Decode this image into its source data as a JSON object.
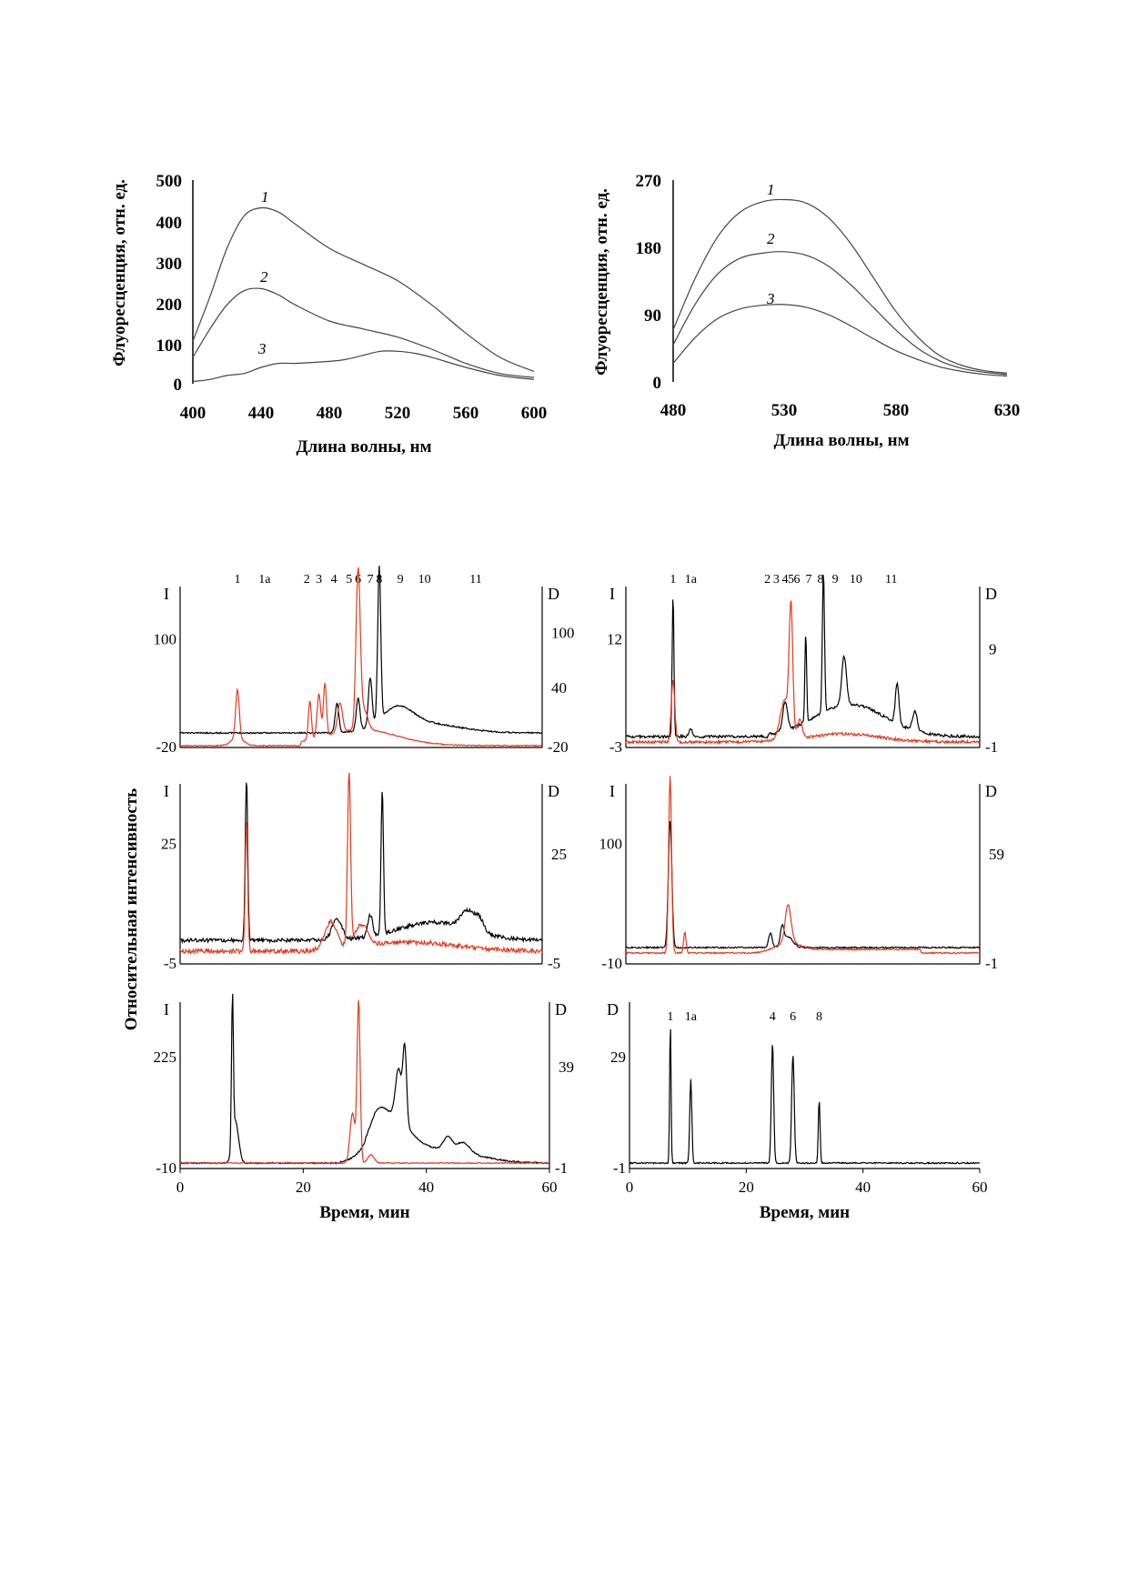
{
  "colors": {
    "black": "#000000",
    "red": "#e03b1f"
  },
  "chart_data": [
    {
      "id": "spec-a",
      "type": "line",
      "xlabel": "Длина волны, нм",
      "ylabel": "Флуоресценция, отн. ед.",
      "xlim": [
        400,
        600
      ],
      "ylim": [
        0,
        500
      ],
      "xticks": [
        "400",
        "440",
        "480",
        "520",
        "560",
        "600"
      ],
      "yticks": [
        "0",
        "100",
        "200",
        "300",
        "400",
        "500"
      ],
      "series": [
        {
          "name": "1",
          "x": [
            400,
            410,
            420,
            430,
            440,
            450,
            460,
            480,
            500,
            520,
            540,
            560,
            580,
            600
          ],
          "y": [
            110,
            220,
            340,
            420,
            440,
            430,
            400,
            340,
            300,
            260,
            200,
            130,
            70,
            35
          ]
        },
        {
          "name": "2",
          "x": [
            400,
            410,
            420,
            430,
            440,
            450,
            460,
            480,
            500,
            520,
            540,
            560,
            580,
            600
          ],
          "y": [
            70,
            140,
            200,
            235,
            240,
            225,
            200,
            160,
            140,
            120,
            90,
            55,
            30,
            20
          ]
        },
        {
          "name": "3",
          "x": [
            400,
            410,
            420,
            430,
            440,
            450,
            460,
            480,
            490,
            500,
            510,
            520,
            530,
            540,
            560,
            580,
            600
          ],
          "y": [
            10,
            15,
            25,
            30,
            45,
            55,
            55,
            60,
            65,
            75,
            85,
            85,
            80,
            70,
            45,
            25,
            15
          ]
        }
      ]
    },
    {
      "id": "spec-b",
      "type": "line",
      "xlabel": "Длина волны, нм",
      "ylabel": "Флуоресценция, отн. ед.",
      "xlim": [
        480,
        630
      ],
      "ylim": [
        0,
        270
      ],
      "xticks": [
        "480",
        "530",
        "580",
        "630"
      ],
      "yticks": [
        "0",
        "90",
        "180",
        "270"
      ],
      "series": [
        {
          "name": "1",
          "x": [
            480,
            490,
            500,
            510,
            520,
            530,
            540,
            550,
            560,
            570,
            580,
            590,
            600,
            610,
            620,
            630
          ],
          "y": [
            70,
            140,
            195,
            228,
            242,
            245,
            240,
            220,
            185,
            140,
            95,
            60,
            35,
            22,
            15,
            12
          ]
        },
        {
          "name": "2",
          "x": [
            480,
            490,
            500,
            510,
            520,
            530,
            540,
            550,
            560,
            570,
            580,
            590,
            600,
            610,
            620,
            630
          ],
          "y": [
            50,
            105,
            145,
            166,
            173,
            175,
            170,
            155,
            130,
            100,
            70,
            45,
            28,
            18,
            13,
            10
          ]
        },
        {
          "name": "3",
          "x": [
            480,
            490,
            500,
            510,
            520,
            530,
            540,
            550,
            560,
            570,
            580,
            590,
            600,
            610,
            620,
            630
          ],
          "y": [
            25,
            60,
            85,
            98,
            103,
            104,
            100,
            90,
            75,
            58,
            42,
            30,
            20,
            14,
            10,
            8
          ]
        }
      ]
    },
    {
      "id": "chrom-1",
      "type": "line",
      "x_range": [
        0,
        60
      ],
      "left_label": "I",
      "right_label": "D",
      "left_ticks": [
        "100",
        "-20"
      ],
      "right_ticks": [
        "100",
        "40",
        "-20"
      ],
      "peak_labels": [
        "1",
        "1a",
        "2",
        "3",
        "4",
        "5",
        "6",
        "7",
        "8",
        "9",
        "10",
        "11"
      ],
      "peak_times": [
        9.5,
        14,
        21,
        23,
        25.5,
        28,
        29.5,
        31.5,
        33,
        36.5,
        40.5,
        49
      ]
    },
    {
      "id": "chrom-2",
      "type": "line",
      "x_range": [
        0,
        60
      ],
      "left_label": "I",
      "right_label": "D",
      "left_ticks": [
        "12",
        "-3"
      ],
      "right_ticks": [
        "9",
        "-1"
      ],
      "peak_labels": [
        "1",
        "1a",
        "2",
        "3",
        "4",
        "5",
        "6",
        "7",
        "8",
        "9",
        "10",
        "11"
      ],
      "peak_times": [
        8,
        11,
        24,
        25.5,
        27,
        28,
        29,
        31,
        33,
        35.5,
        39,
        45
      ]
    },
    {
      "id": "chrom-3",
      "type": "line",
      "x_range": [
        0,
        60
      ],
      "left_label": "I",
      "right_label": "D",
      "left_ticks": [
        "25",
        "-5"
      ],
      "right_ticks": [
        "25",
        "-5"
      ]
    },
    {
      "id": "chrom-4",
      "type": "line",
      "x_range": [
        0,
        60
      ],
      "left_label": "I",
      "right_label": "D",
      "left_ticks": [
        "100",
        "-10"
      ],
      "right_ticks": [
        "59",
        "-1"
      ]
    },
    {
      "id": "chrom-5",
      "type": "line",
      "x_range": [
        0,
        60
      ],
      "left_label": "I",
      "right_label": "D",
      "left_ticks": [
        "225",
        "-10"
      ],
      "right_ticks": [
        "39",
        "-1"
      ],
      "xticks": [
        "0",
        "20",
        "40",
        "60"
      ],
      "xlabel": "Время, мин"
    },
    {
      "id": "chrom-6",
      "type": "line",
      "x_range": [
        0,
        60
      ],
      "left_label": "D",
      "left_ticks": [
        "29",
        "-1"
      ],
      "xticks": [
        "0",
        "20",
        "40",
        "60"
      ],
      "xlabel": "Время, мин",
      "peak_labels": [
        "1",
        "1a",
        "4",
        "6",
        "8"
      ],
      "peak_times": [
        7,
        10.5,
        24.5,
        28,
        32.5
      ]
    }
  ],
  "shared_ylabel": "Относительная интенсивность"
}
